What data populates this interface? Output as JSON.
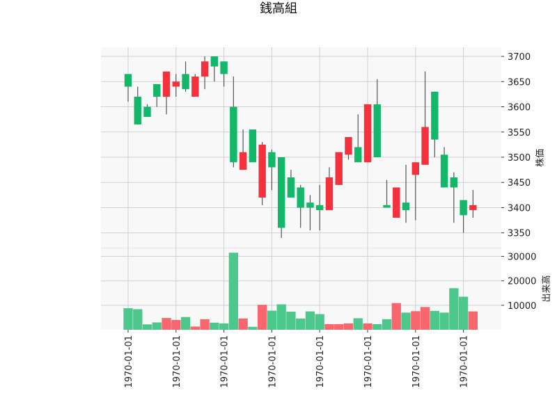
{
  "chart_data": {
    "type": "candlestick",
    "title": "銭高組",
    "price_ylabel": "株価",
    "volume_ylabel": "出来高",
    "x_tick_labels": [
      "1970-01-01",
      "1970-01-01",
      "1970-01-01",
      "1970-01-01",
      "1970-01-01",
      "1970-01-01",
      "1970-01-01",
      "1970-01-01"
    ],
    "price_yticks": [
      3350,
      3400,
      3450,
      3500,
      3550,
      3600,
      3650,
      3700
    ],
    "volume_yticks": [
      10000,
      20000,
      30000
    ],
    "price_ylim": [
      3322,
      3718
    ],
    "volume_ylim": [
      0,
      33000
    ],
    "colors": {
      "up": "#12b76a",
      "down": "#f5313e",
      "up_volume": "#4dc88c",
      "down_volume": "#f8666e",
      "wick": "#555555",
      "grid": "#d0d0d0",
      "background": "#f8f8f8"
    },
    "candles": [
      {
        "o": 3640,
        "h": 3665,
        "l": 3610,
        "c": 3665,
        "v": 8800
      },
      {
        "o": 3565,
        "h": 3640,
        "l": 3565,
        "c": 3620,
        "v": 8400
      },
      {
        "o": 3580,
        "h": 3605,
        "l": 3580,
        "c": 3600,
        "v": 2200
      },
      {
        "o": 3620,
        "h": 3645,
        "l": 3600,
        "c": 3645,
        "v": 3000
      },
      {
        "o": 3670,
        "h": 3670,
        "l": 3585,
        "c": 3620,
        "v": 4800
      },
      {
        "o": 3650,
        "h": 3665,
        "l": 3620,
        "c": 3640,
        "v": 4000
      },
      {
        "o": 3635,
        "h": 3690,
        "l": 3630,
        "c": 3665,
        "v": 5200
      },
      {
        "o": 3660,
        "h": 3665,
        "l": 3620,
        "c": 3620,
        "v": 1300
      },
      {
        "o": 3690,
        "h": 3700,
        "l": 3635,
        "c": 3660,
        "v": 4300
      },
      {
        "o": 3680,
        "h": 3700,
        "l": 3650,
        "c": 3700,
        "v": 2900
      },
      {
        "o": 3665,
        "h": 3690,
        "l": 3640,
        "c": 3690,
        "v": 2600
      },
      {
        "o": 3490,
        "h": 3660,
        "l": 3480,
        "c": 3600,
        "v": 31500
      },
      {
        "o": 3510,
        "h": 3555,
        "l": 3475,
        "c": 3475,
        "v": 4600
      },
      {
        "o": 3490,
        "h": 3555,
        "l": 3490,
        "c": 3555,
        "v": 1200
      },
      {
        "o": 3525,
        "h": 3530,
        "l": 3405,
        "c": 3420,
        "v": 10200
      },
      {
        "o": 3480,
        "h": 3515,
        "l": 3435,
        "c": 3510,
        "v": 7800
      },
      {
        "o": 3360,
        "h": 3500,
        "l": 3340,
        "c": 3500,
        "v": 10400
      },
      {
        "o": 3420,
        "h": 3475,
        "l": 3420,
        "c": 3460,
        "v": 7400
      },
      {
        "o": 3400,
        "h": 3445,
        "l": 3360,
        "c": 3440,
        "v": 4600
      },
      {
        "o": 3400,
        "h": 3425,
        "l": 3355,
        "c": 3410,
        "v": 7500
      },
      {
        "o": 3395,
        "h": 3445,
        "l": 3355,
        "c": 3405,
        "v": 6400
      },
      {
        "o": 3460,
        "h": 3480,
        "l": 3395,
        "c": 3395,
        "v": 2300
      },
      {
        "o": 3510,
        "h": 3510,
        "l": 3445,
        "c": 3445,
        "v": 2300
      },
      {
        "o": 3540,
        "h": 3540,
        "l": 3495,
        "c": 3505,
        "v": 2600
      },
      {
        "o": 3490,
        "h": 3585,
        "l": 3490,
        "c": 3520,
        "v": 4700
      },
      {
        "o": 3605,
        "h": 3605,
        "l": 3490,
        "c": 3490,
        "v": 2600
      },
      {
        "o": 3500,
        "h": 3655,
        "l": 3500,
        "c": 3605,
        "v": 2300
      },
      {
        "o": 3400,
        "h": 3455,
        "l": 3400,
        "c": 3405,
        "v": 4300
      },
      {
        "o": 3440,
        "h": 3440,
        "l": 3380,
        "c": 3380,
        "v": 10900
      },
      {
        "o": 3395,
        "h": 3485,
        "l": 3370,
        "c": 3410,
        "v": 7000
      },
      {
        "o": 3490,
        "h": 3490,
        "l": 3375,
        "c": 3465,
        "v": 7600
      },
      {
        "o": 3560,
        "h": 3670,
        "l": 3485,
        "c": 3485,
        "v": 9300
      },
      {
        "o": 3535,
        "h": 3630,
        "l": 3500,
        "c": 3630,
        "v": 7700
      },
      {
        "o": 3440,
        "h": 3520,
        "l": 3440,
        "c": 3505,
        "v": 7000
      },
      {
        "o": 3440,
        "h": 3470,
        "l": 3370,
        "c": 3460,
        "v": 17000
      },
      {
        "o": 3385,
        "h": 3415,
        "l": 3350,
        "c": 3415,
        "v": 13500
      },
      {
        "o": 3405,
        "h": 3435,
        "l": 3380,
        "c": 3395,
        "v": 7500
      }
    ]
  }
}
